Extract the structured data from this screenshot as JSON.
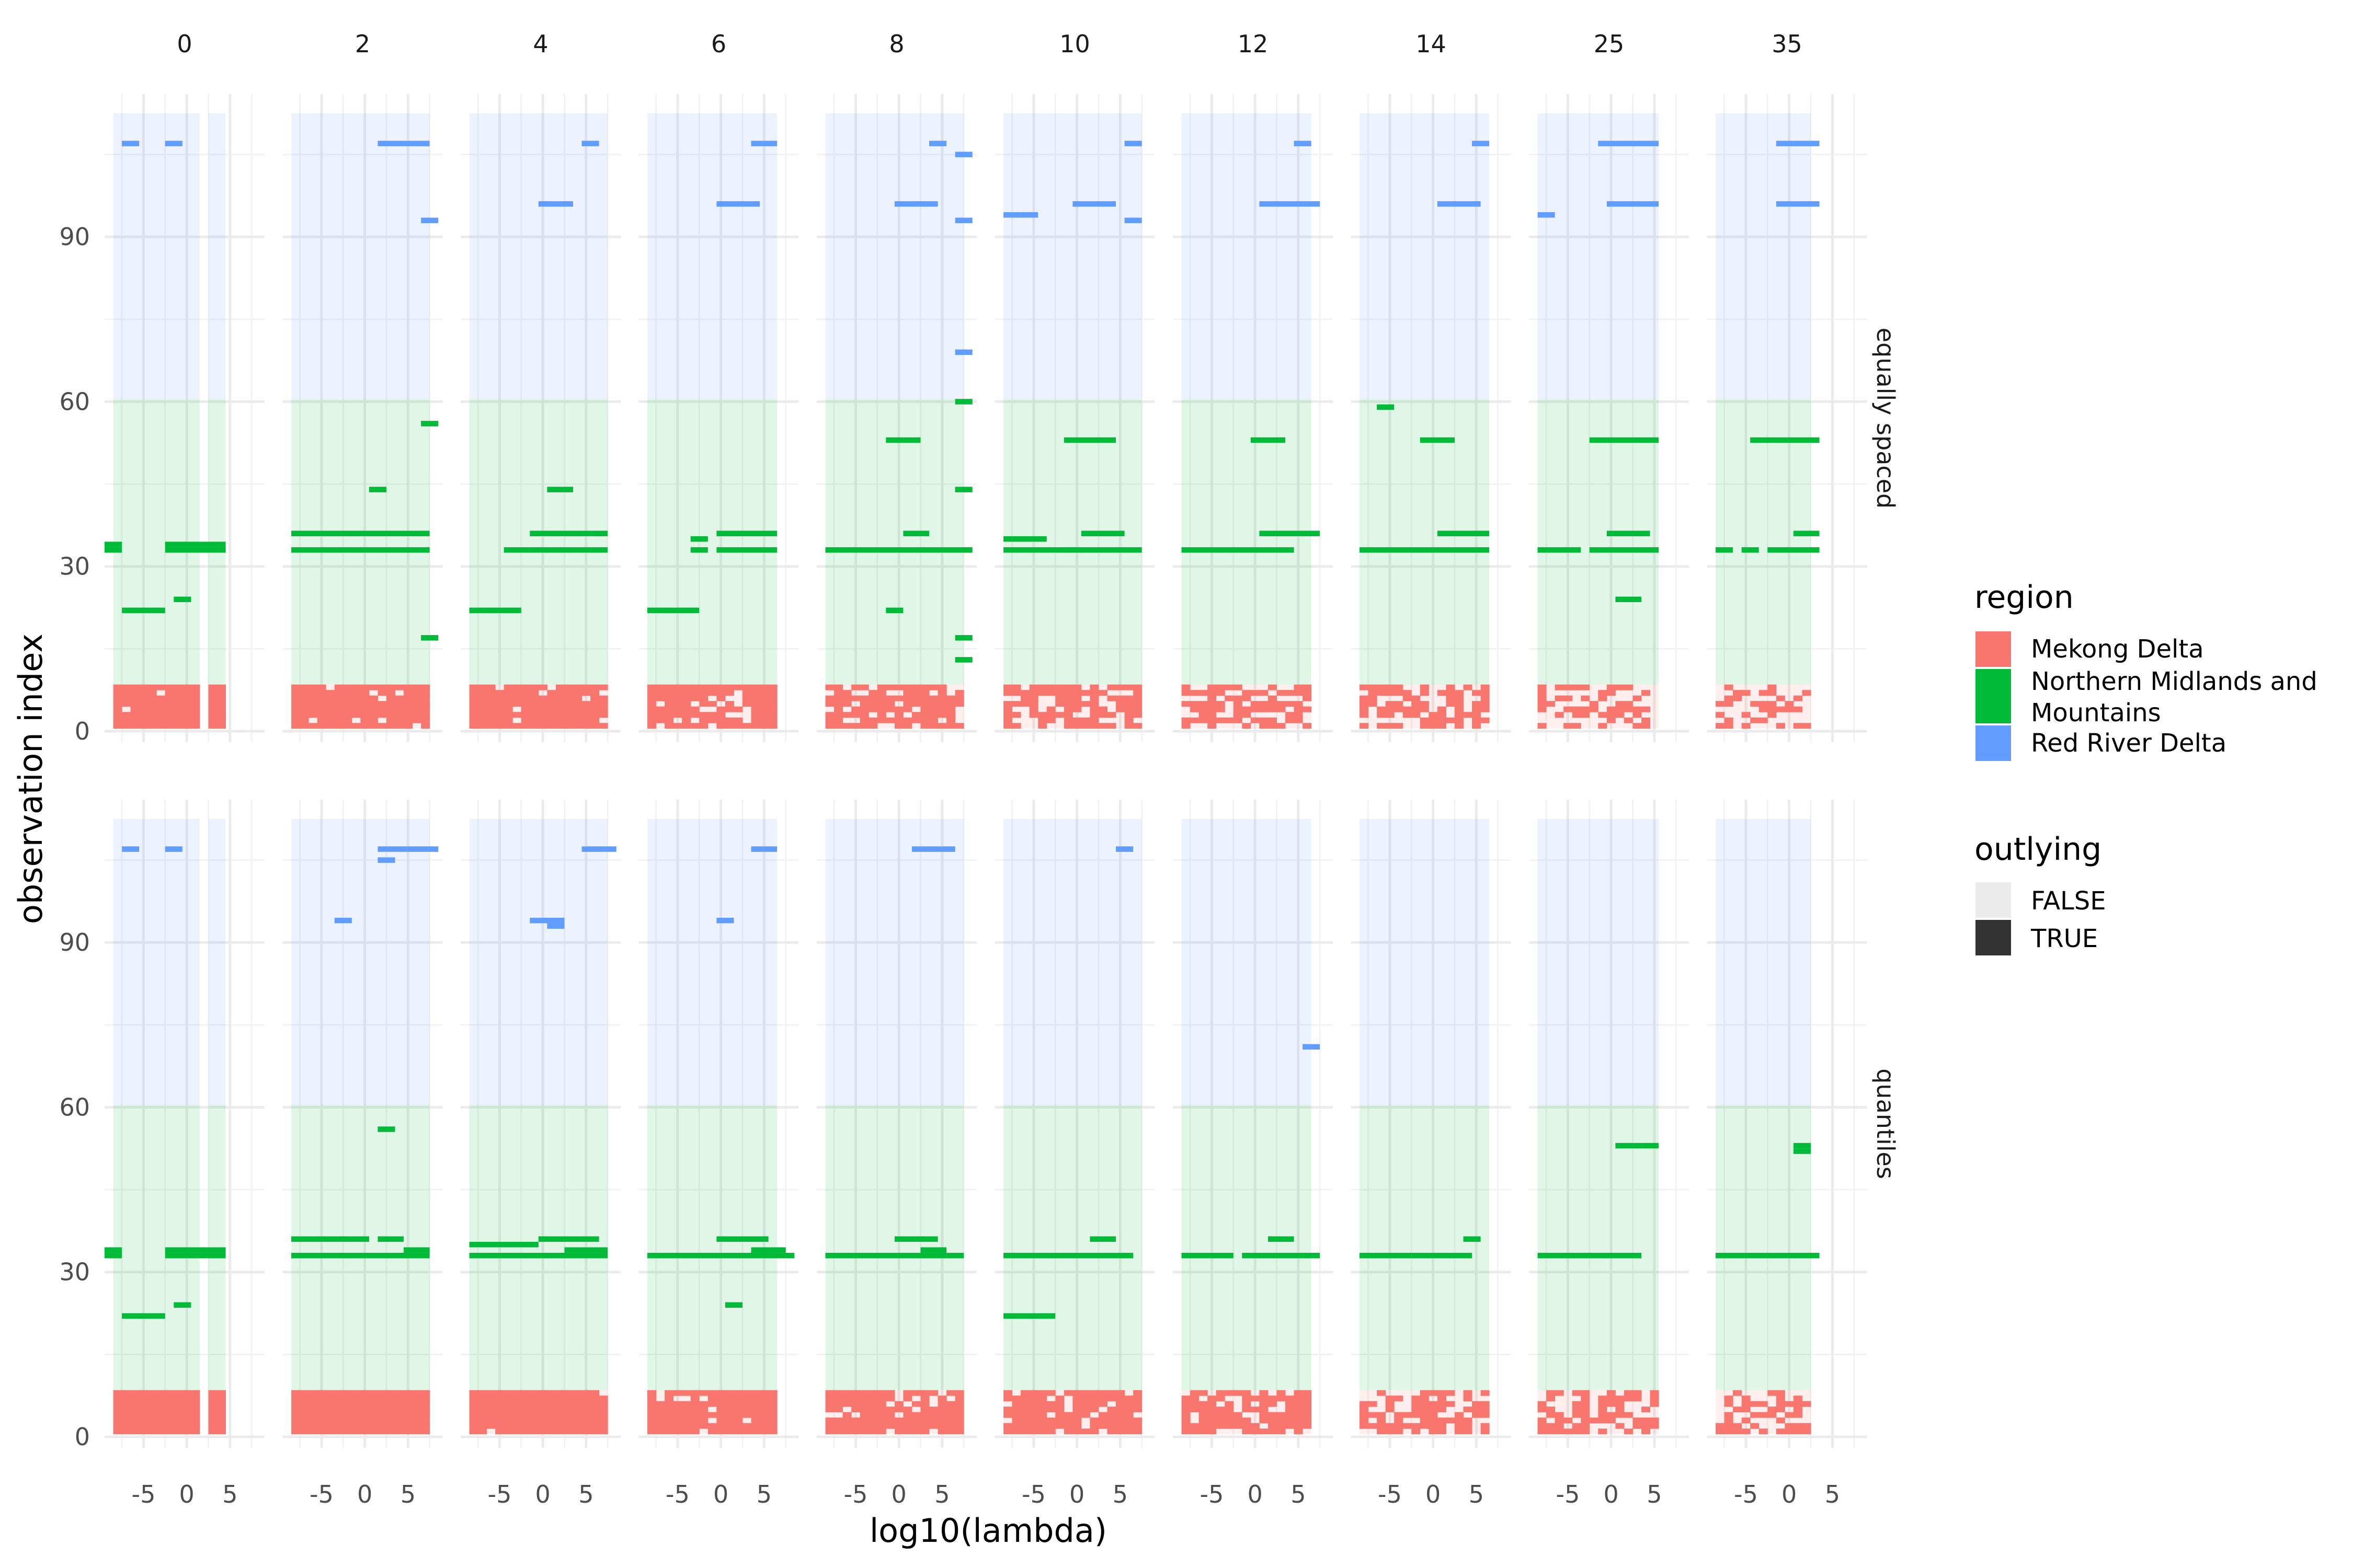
{
  "chart_data": {
    "type": "heatmap",
    "xlabel": "log10(lambda)",
    "ylabel": "observation index",
    "x_range": [
      -9.5,
      9
    ],
    "y_range": [
      -2,
      116
    ],
    "x_ticks": [
      -5,
      0,
      5
    ],
    "y_ticks": [
      0,
      30,
      60,
      90
    ],
    "grid": true,
    "column_facets": [
      "0",
      "2",
      "4",
      "6",
      "8",
      "10",
      "12",
      "14",
      "25",
      "35"
    ],
    "row_facets": [
      "equally spaced",
      "quantiles"
    ],
    "x_coverage": [
      [
        -8.5,
        1.5,
        2.5,
        4.5
      ],
      [
        -8.5,
        7.5
      ],
      [
        -8.5,
        7.5
      ],
      [
        -8.5,
        6.5
      ],
      [
        -8.5,
        7.5
      ],
      [
        -8.5,
        7.5
      ],
      [
        -8.5,
        6.5
      ],
      [
        -8.5,
        6.5
      ],
      [
        -8.5,
        5.5
      ],
      [
        -8.5,
        2.5
      ]
    ],
    "regions": [
      {
        "name": "Mekong Delta",
        "color": "#F8766D",
        "y_range": [
          0.5,
          8.5
        ]
      },
      {
        "name": "Northern Midlands and Mountains",
        "color": "#00BA38",
        "y_range": [
          8.5,
          60.5
        ]
      },
      {
        "name": "Red River Delta",
        "color": "#619CFF",
        "y_range": [
          60.5,
          112.5
        ]
      }
    ],
    "legend": {
      "placement": "right",
      "region_title": "region",
      "region_entries": [
        {
          "label": "Mekong Delta",
          "color": "#F8766D"
        },
        {
          "label": "Northern Midlands and",
          "label_line2": "Mountains",
          "color": "#00BA38"
        },
        {
          "label": "Red River Delta",
          "color": "#619CFF"
        }
      ],
      "outlying_title": "outlying",
      "outlying_entries": [
        {
          "label": "FALSE",
          "color": "#EBEBEB"
        },
        {
          "label": "TRUE",
          "color": "#333333"
        }
      ]
    },
    "outlying_segments": {
      "equally spaced": {
        "0": [
          [
            107,
            -7,
            -6
          ],
          [
            107,
            -2,
            -1
          ],
          [
            34,
            -9,
            -8
          ],
          [
            34,
            -2,
            4
          ],
          [
            33,
            -9,
            -8
          ],
          [
            33,
            -2,
            4
          ],
          [
            22,
            -7,
            -3
          ],
          [
            24,
            -1,
            0
          ]
        ],
        "2": [
          [
            107,
            2,
            3
          ],
          [
            107,
            4,
            7
          ],
          [
            93,
            7,
            8
          ],
          [
            56,
            7,
            8
          ],
          [
            44,
            1,
            2
          ],
          [
            36,
            -8,
            7
          ],
          [
            33,
            -8,
            7
          ],
          [
            17,
            7,
            8
          ]
        ],
        "4": [
          [
            107,
            5,
            6
          ],
          [
            96,
            0,
            3
          ],
          [
            44,
            1,
            3
          ],
          [
            36,
            -1,
            5
          ],
          [
            36,
            6,
            7
          ],
          [
            33,
            -4,
            -2
          ],
          [
            33,
            -1,
            5
          ],
          [
            33,
            6,
            7
          ],
          [
            22,
            -8,
            -3
          ]
        ],
        "6": [
          [
            107,
            4,
            6
          ],
          [
            96,
            0,
            4
          ],
          [
            35,
            -3,
            -2
          ],
          [
            36,
            0,
            6
          ],
          [
            33,
            -3,
            -2
          ],
          [
            33,
            0,
            6
          ],
          [
            22,
            -8,
            -3
          ]
        ],
        "8": [
          [
            107,
            4,
            5
          ],
          [
            105,
            7,
            8
          ],
          [
            96,
            0,
            4
          ],
          [
            93,
            7,
            8
          ],
          [
            69,
            7,
            8
          ],
          [
            60,
            7,
            8
          ],
          [
            53,
            -1,
            2
          ],
          [
            44,
            7,
            8
          ],
          [
            36,
            1,
            3
          ],
          [
            33,
            -8,
            8
          ],
          [
            22,
            -1,
            0
          ],
          [
            17,
            7,
            8
          ],
          [
            13,
            7,
            8
          ]
        ],
        "10": [
          [
            107,
            6,
            7
          ],
          [
            94,
            -8,
            -7
          ],
          [
            94,
            -6,
            -5
          ],
          [
            96,
            0,
            4
          ],
          [
            93,
            6,
            7
          ],
          [
            53,
            -1,
            4
          ],
          [
            36,
            1,
            5
          ],
          [
            35,
            -8,
            -4
          ],
          [
            33,
            -8,
            7
          ],
          [
            33,
            -1,
            0
          ]
        ],
        "12": [
          [
            107,
            5,
            6
          ],
          [
            96,
            1,
            5
          ],
          [
            96,
            6,
            7
          ],
          [
            53,
            0,
            3
          ],
          [
            36,
            1,
            7
          ],
          [
            33,
            -8,
            4
          ]
        ],
        "14": [
          [
            107,
            5,
            6
          ],
          [
            96,
            1,
            5
          ],
          [
            59,
            -6,
            -5
          ],
          [
            53,
            -1,
            2
          ],
          [
            36,
            1,
            5
          ],
          [
            36,
            5,
            6
          ],
          [
            33,
            -8,
            6
          ]
        ],
        "25": [
          [
            107,
            -1,
            5
          ],
          [
            96,
            0,
            5
          ],
          [
            94,
            -8,
            -7
          ],
          [
            53,
            -2,
            5
          ],
          [
            36,
            0,
            4
          ],
          [
            33,
            -8,
            -4
          ],
          [
            33,
            -2,
            5
          ],
          [
            24,
            1,
            3
          ]
        ],
        "35": [
          [
            107,
            -1,
            0
          ],
          [
            107,
            1,
            3
          ],
          [
            96,
            -1,
            3
          ],
          [
            53,
            -4,
            3
          ],
          [
            36,
            1,
            3
          ],
          [
            33,
            -8,
            -7
          ],
          [
            33,
            -5,
            -4
          ],
          [
            33,
            -2,
            3
          ]
        ]
      },
      "quantiles": {
        "0": [
          [
            107,
            -7,
            -6
          ],
          [
            107,
            -2,
            -1
          ],
          [
            34,
            -9,
            -8
          ],
          [
            34,
            -2,
            4
          ],
          [
            33,
            -9,
            -8
          ],
          [
            33,
            -2,
            4
          ],
          [
            22,
            -7,
            -3
          ],
          [
            24,
            -1,
            0
          ]
        ],
        "2": [
          [
            107,
            2,
            8
          ],
          [
            105,
            2,
            3
          ],
          [
            94,
            -3,
            -2
          ],
          [
            56,
            2,
            3
          ],
          [
            36,
            -8,
            0
          ],
          [
            36,
            2,
            4
          ],
          [
            33,
            -8,
            7
          ],
          [
            34,
            5,
            7
          ]
        ],
        "4": [
          [
            107,
            5,
            8
          ],
          [
            94,
            -1,
            2
          ],
          [
            93,
            1,
            2
          ],
          [
            35,
            -8,
            -1
          ],
          [
            36,
            0,
            4
          ],
          [
            36,
            5,
            6
          ],
          [
            33,
            -8,
            7
          ],
          [
            34,
            3,
            7
          ]
        ],
        "6": [
          [
            107,
            4,
            6
          ],
          [
            94,
            0,
            1
          ],
          [
            36,
            0,
            5
          ],
          [
            34,
            4,
            7
          ],
          [
            33,
            -8,
            8
          ],
          [
            24,
            1,
            2
          ]
        ],
        "8": [
          [
            107,
            2,
            3
          ],
          [
            107,
            4,
            6
          ],
          [
            36,
            0,
            4
          ],
          [
            34,
            3,
            5
          ],
          [
            33,
            -8,
            5
          ],
          [
            33,
            6,
            7
          ]
        ],
        "10": [
          [
            107,
            5,
            6
          ],
          [
            36,
            2,
            4
          ],
          [
            33,
            -8,
            6
          ],
          [
            22,
            -8,
            -3
          ]
        ],
        "12": [
          [
            71,
            6,
            7
          ],
          [
            36,
            2,
            4
          ],
          [
            33,
            -8,
            -3
          ],
          [
            33,
            -1,
            5
          ],
          [
            33,
            6,
            7
          ]
        ],
        "14": [
          [
            36,
            4,
            5
          ],
          [
            33,
            -8,
            -3
          ],
          [
            33,
            -2,
            4
          ]
        ],
        "25": [
          [
            53,
            1,
            3
          ],
          [
            53,
            4,
            5
          ],
          [
            33,
            -8,
            3
          ]
        ],
        "35": [
          [
            53,
            1,
            2
          ],
          [
            52,
            1,
            2
          ],
          [
            33,
            -8,
            3
          ]
        ]
      }
    },
    "mekong_outlying_pattern": [
      0.99,
      0.95,
      0.93,
      0.88,
      0.82,
      0.76,
      0.7,
      0.62,
      0.5,
      0.4
    ]
  }
}
